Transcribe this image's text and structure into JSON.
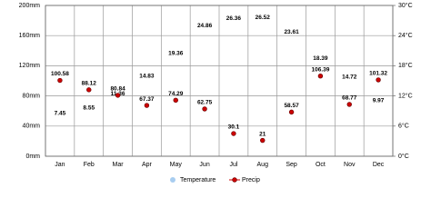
{
  "chart_data": {
    "type": "climate",
    "categories": [
      "Jan",
      "Feb",
      "Mar",
      "Apr",
      "May",
      "Jun",
      "Jul",
      "Aug",
      "Sep",
      "Oct",
      "Nov",
      "Dec"
    ],
    "series": [
      {
        "name": "Temperature",
        "color": "#a8cdf0",
        "axis": "y2",
        "values": [
          7.45,
          8.55,
          11.36,
          14.83,
          19.36,
          24.86,
          26.36,
          26.52,
          23.61,
          18.39,
          14.72,
          9.97
        ]
      },
      {
        "name": "Precip",
        "color": "#cc0000",
        "values": [
          100.58,
          88.12,
          80.84,
          67.37,
          74.29,
          62.75,
          30.1,
          21,
          58.57,
          106.39,
          68.77,
          101.32
        ]
      }
    ],
    "ylim": [
      0,
      200
    ],
    "yticks": [
      {
        "value": 0,
        "label": "0mm"
      },
      {
        "value": 40,
        "label": "40mm"
      },
      {
        "value": 80,
        "label": "80mm"
      },
      {
        "value": 120,
        "label": "120mm"
      },
      {
        "value": 160,
        "label": "160mm"
      },
      {
        "value": 200,
        "label": "200mm"
      }
    ],
    "y2lim": [
      0,
      30
    ],
    "y2ticks": [
      {
        "value": 0,
        "label": "0°C"
      },
      {
        "value": 6,
        "label": "6°C"
      },
      {
        "value": 12,
        "label": "12°C"
      },
      {
        "value": 18,
        "label": "18°C"
      },
      {
        "value": 24,
        "label": "24°C"
      },
      {
        "value": 30,
        "label": "30°C"
      }
    ],
    "grid": true
  }
}
